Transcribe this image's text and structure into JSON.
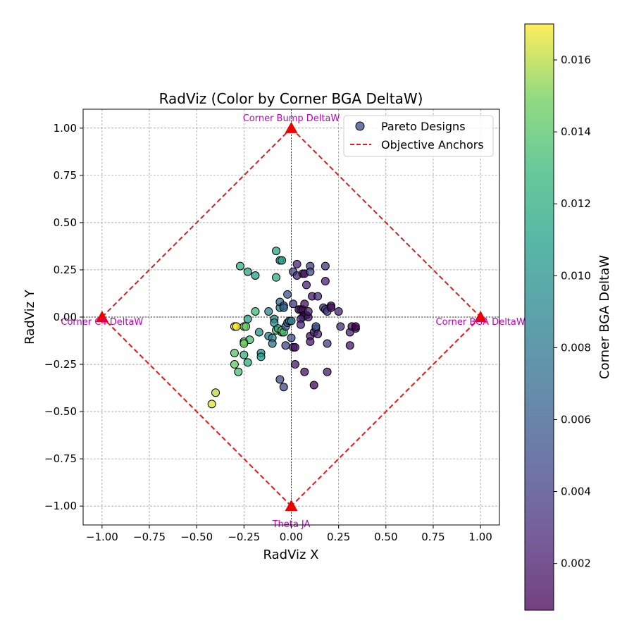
{
  "chart_data": {
    "type": "scatter",
    "title": "RadViz (Color by Corner BGA DeltaW)",
    "xlabel": "RadViz X",
    "ylabel": "RadViz Y",
    "xlim": [
      -1.1,
      1.1
    ],
    "ylim": [
      -1.1,
      1.1
    ],
    "x_ticks": [
      "−1.00",
      "−0.75",
      "−0.50",
      "−0.25",
      "0.00",
      "0.25",
      "0.50",
      "0.75",
      "1.00"
    ],
    "y_ticks": [
      "1.00",
      "0.75",
      "0.50",
      "0.25",
      "0.00",
      "−0.25",
      "−0.50",
      "−0.75",
      "−1.00"
    ],
    "x_tick_values": [
      -1,
      -0.75,
      -0.5,
      -0.25,
      0,
      0.25,
      0.5,
      0.75,
      1
    ],
    "y_tick_values": [
      1,
      0.75,
      0.5,
      0.25,
      0,
      -0.25,
      -0.5,
      -0.75,
      -1
    ],
    "grid": true,
    "legend": {
      "placement": "top-right",
      "entries": [
        "Pareto Designs",
        "Objective Anchors"
      ]
    },
    "anchors": [
      {
        "label": "Corner Bump DeltaW",
        "x": 0,
        "y": 1
      },
      {
        "label": "Corner BGA DeltaW",
        "x": 1,
        "y": 0
      },
      {
        "label": "Theta JA",
        "x": 0,
        "y": -1
      },
      {
        "label": "Corner C4 DeltaW",
        "x": -1,
        "y": 0
      }
    ],
    "colorbar": {
      "label": "Corner BGA DeltaW",
      "min": 0.0007,
      "max": 0.017,
      "tick_values": [
        0.002,
        0.004,
        0.006,
        0.008,
        0.01,
        0.012,
        0.014,
        0.016
      ],
      "tick_labels": [
        "0.002",
        "0.004",
        "0.006",
        "0.008",
        "0.010",
        "0.012",
        "0.014",
        "0.016"
      ]
    },
    "points": [
      {
        "x": -0.42,
        "y": -0.46,
        "c": 0.0165
      },
      {
        "x": -0.4,
        "y": -0.4,
        "c": 0.016
      },
      {
        "x": -0.3,
        "y": -0.05,
        "c": 0.0165
      },
      {
        "x": -0.29,
        "y": -0.05,
        "c": 0.017
      },
      {
        "x": -0.25,
        "y": -0.05,
        "c": 0.015
      },
      {
        "x": -0.24,
        "y": -0.05,
        "c": 0.0145
      },
      {
        "x": -0.3,
        "y": -0.19,
        "c": 0.014
      },
      {
        "x": -0.3,
        "y": -0.25,
        "c": 0.0145
      },
      {
        "x": -0.28,
        "y": -0.29,
        "c": 0.0135
      },
      {
        "x": -0.25,
        "y": -0.2,
        "c": 0.0125
      },
      {
        "x": -0.23,
        "y": -0.24,
        "c": 0.012
      },
      {
        "x": -0.25,
        "y": -0.13,
        "c": 0.014
      },
      {
        "x": -0.22,
        "y": -0.12,
        "c": 0.0135
      },
      {
        "x": -0.25,
        "y": -0.14,
        "c": 0.015
      },
      {
        "x": -0.19,
        "y": 0.03,
        "c": 0.013
      },
      {
        "x": -0.23,
        "y": -0.01,
        "c": 0.0115
      },
      {
        "x": -0.27,
        "y": 0.27,
        "c": 0.0125
      },
      {
        "x": -0.23,
        "y": 0.24,
        "c": 0.0115
      },
      {
        "x": -0.19,
        "y": 0.22,
        "c": 0.011
      },
      {
        "x": -0.08,
        "y": 0.35,
        "c": 0.0115
      },
      {
        "x": -0.08,
        "y": 0.21,
        "c": 0.012
      },
      {
        "x": -0.06,
        "y": 0.3,
        "c": 0.0105
      },
      {
        "x": -0.05,
        "y": 0.3,
        "c": 0.011
      },
      {
        "x": -0.17,
        "y": -0.08,
        "c": 0.01
      },
      {
        "x": -0.16,
        "y": -0.19,
        "c": 0.0095
      },
      {
        "x": -0.16,
        "y": -0.21,
        "c": 0.0105
      },
      {
        "x": -0.12,
        "y": -0.1,
        "c": 0.0085
      },
      {
        "x": -0.1,
        "y": -0.11,
        "c": 0.009
      },
      {
        "x": -0.1,
        "y": -0.14,
        "c": 0.0075
      },
      {
        "x": -0.12,
        "y": 0.03,
        "c": 0.009
      },
      {
        "x": -0.09,
        "y": -0.01,
        "c": 0.01
      },
      {
        "x": -0.09,
        "y": -0.03,
        "c": 0.0095
      },
      {
        "x": -0.08,
        "y": -0.07,
        "c": 0.014
      },
      {
        "x": -0.07,
        "y": -0.06,
        "c": 0.011
      },
      {
        "x": -0.05,
        "y": -0.08,
        "c": 0.012
      },
      {
        "x": -0.05,
        "y": -0.07,
        "c": 0.015
      },
      {
        "x": -0.04,
        "y": -0.08,
        "c": 0.0135
      },
      {
        "x": -0.06,
        "y": 0.05,
        "c": 0.0085
      },
      {
        "x": -0.06,
        "y": 0.08,
        "c": 0.007
      },
      {
        "x": -0.04,
        "y": 0.06,
        "c": 0.006
      },
      {
        "x": -0.04,
        "y": 0.05,
        "c": 0.0065
      },
      {
        "x": -0.02,
        "y": 0.12,
        "c": 0.0055
      },
      {
        "x": -0.03,
        "y": -0.05,
        "c": 0.006
      },
      {
        "x": -0.02,
        "y": -0.03,
        "c": 0.0055
      },
      {
        "x": -0.01,
        "y": -0.02,
        "c": 0.009
      },
      {
        "x": 0.0,
        "y": -0.02,
        "c": 0.0085
      },
      {
        "x": 0.0,
        "y": -0.11,
        "c": 0.005
      },
      {
        "x": -0.03,
        "y": -0.15,
        "c": 0.0045
      },
      {
        "x": 0.01,
        "y": -0.16,
        "c": 0.003
      },
      {
        "x": 0.02,
        "y": -0.16,
        "c": 0.0015
      },
      {
        "x": -0.06,
        "y": -0.33,
        "c": 0.005
      },
      {
        "x": -0.04,
        "y": -0.37,
        "c": 0.0045
      },
      {
        "x": 0.02,
        "y": -0.25,
        "c": 0.002
      },
      {
        "x": 0.07,
        "y": -0.29,
        "c": 0.0015
      },
      {
        "x": 0.12,
        "y": -0.36,
        "c": 0.001
      },
      {
        "x": 0.19,
        "y": -0.29,
        "c": 0.002
      },
      {
        "x": 0.01,
        "y": 0.07,
        "c": 0.0035
      },
      {
        "x": 0.01,
        "y": 0.24,
        "c": 0.0045
      },
      {
        "x": 0.03,
        "y": 0.28,
        "c": 0.0025
      },
      {
        "x": 0.03,
        "y": 0.22,
        "c": 0.003
      },
      {
        "x": 0.06,
        "y": 0.23,
        "c": 0.002
      },
      {
        "x": 0.07,
        "y": 0.23,
        "c": 0.0015
      },
      {
        "x": 0.08,
        "y": 0.17,
        "c": 0.0025
      },
      {
        "x": 0.1,
        "y": 0.27,
        "c": 0.004
      },
      {
        "x": 0.1,
        "y": 0.24,
        "c": 0.005
      },
      {
        "x": 0.11,
        "y": 0.11,
        "c": 0.002
      },
      {
        "x": 0.14,
        "y": 0.11,
        "c": 0.003
      },
      {
        "x": 0.18,
        "y": 0.27,
        "c": 0.0035
      },
      {
        "x": 0.18,
        "y": 0.19,
        "c": 0.0025
      },
      {
        "x": 0.04,
        "y": 0.04,
        "c": 0.0015
      },
      {
        "x": 0.05,
        "y": 0.04,
        "c": 0.002
      },
      {
        "x": 0.06,
        "y": 0.04,
        "c": 0.001
      },
      {
        "x": 0.07,
        "y": 0.07,
        "c": 0.0015
      },
      {
        "x": 0.06,
        "y": 0.0,
        "c": 0.001
      },
      {
        "x": 0.07,
        "y": 0.01,
        "c": 0.0008
      },
      {
        "x": 0.08,
        "y": 0.01,
        "c": 0.0012
      },
      {
        "x": 0.09,
        "y": 0.0,
        "c": 0.002
      },
      {
        "x": 0.09,
        "y": 0.03,
        "c": 0.0025
      },
      {
        "x": 0.05,
        "y": -0.01,
        "c": 0.003
      },
      {
        "x": 0.05,
        "y": -0.04,
        "c": 0.0025
      },
      {
        "x": 0.1,
        "y": -0.1,
        "c": 0.0015
      },
      {
        "x": 0.1,
        "y": -0.13,
        "c": 0.002
      },
      {
        "x": 0.12,
        "y": -0.08,
        "c": 0.003
      },
      {
        "x": 0.13,
        "y": -0.06,
        "c": 0.006
      },
      {
        "x": 0.14,
        "y": -0.09,
        "c": 0.0025
      },
      {
        "x": 0.13,
        "y": -0.05,
        "c": 0.005
      },
      {
        "x": 0.17,
        "y": 0.05,
        "c": 0.003
      },
      {
        "x": 0.18,
        "y": 0.04,
        "c": 0.0035
      },
      {
        "x": 0.19,
        "y": 0.03,
        "c": 0.004
      },
      {
        "x": 0.21,
        "y": 0.06,
        "c": 0.001
      },
      {
        "x": 0.21,
        "y": 0.05,
        "c": 0.0015
      },
      {
        "x": 0.25,
        "y": 0.03,
        "c": 0.0025
      },
      {
        "x": 0.19,
        "y": -0.14,
        "c": 0.004
      },
      {
        "x": 0.26,
        "y": -0.05,
        "c": 0.003
      },
      {
        "x": 0.31,
        "y": -0.08,
        "c": 0.0025
      },
      {
        "x": 0.31,
        "y": -0.15,
        "c": 0.002
      },
      {
        "x": 0.32,
        "y": -0.05,
        "c": 0.0015
      },
      {
        "x": 0.34,
        "y": -0.06,
        "c": 0.001
      },
      {
        "x": 0.34,
        "y": -0.05,
        "c": 0.0008
      }
    ]
  }
}
